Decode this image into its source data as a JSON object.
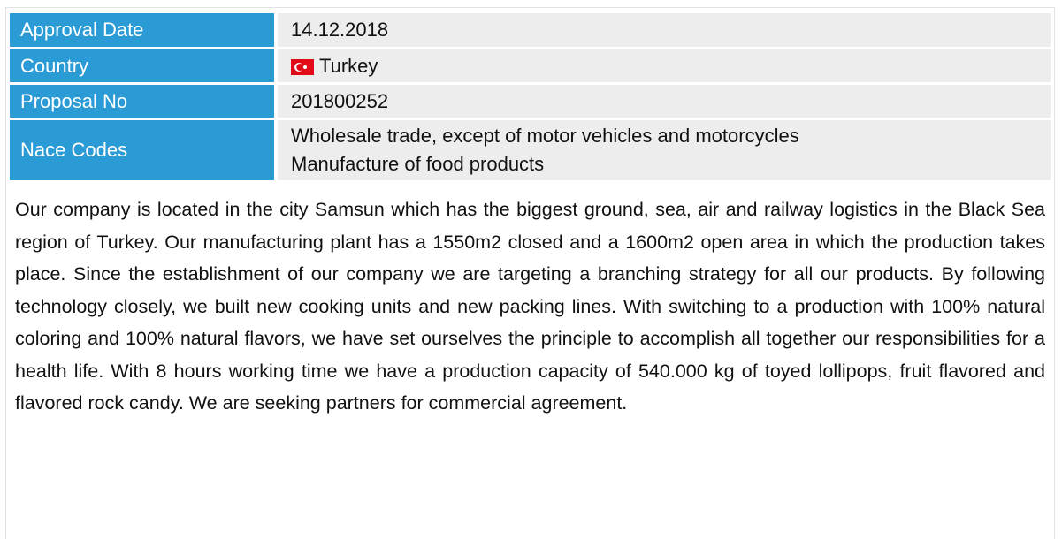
{
  "table": {
    "rows": [
      {
        "label": "Approval Date",
        "value": [
          "14.12.2018"
        ]
      },
      {
        "label": "Country",
        "value": [
          "Turkey"
        ]
      },
      {
        "label": "Proposal No",
        "value": [
          "201800252"
        ]
      },
      {
        "label": "Nace Codes",
        "value": [
          "Wholesale trade, except of motor vehicles and motorcycles",
          "Manufacture of food products"
        ]
      }
    ]
  },
  "description": "Our company is located in the city Samsun which has the biggest ground, sea, air and railway logistics in the Black Sea region of Turkey. Our manufacturing plant has a 1550m2 closed and a 1600m2 open area in which the production takes place. Since the establishment of our company we are targeting a branching strategy for all our products. By following technology closely, we built new cooking units and new packing lines. With switching to a production with 100% natural coloring and 100% natural flavors, we have set ourselves the principle to accomplish all together our responsibilities for a health life. With 8 hours working time we have a production capacity of 540.000 kg of toyed lollipops, fruit flavored and flavored rock candy. We are seeking partners for commercial agreement."
}
